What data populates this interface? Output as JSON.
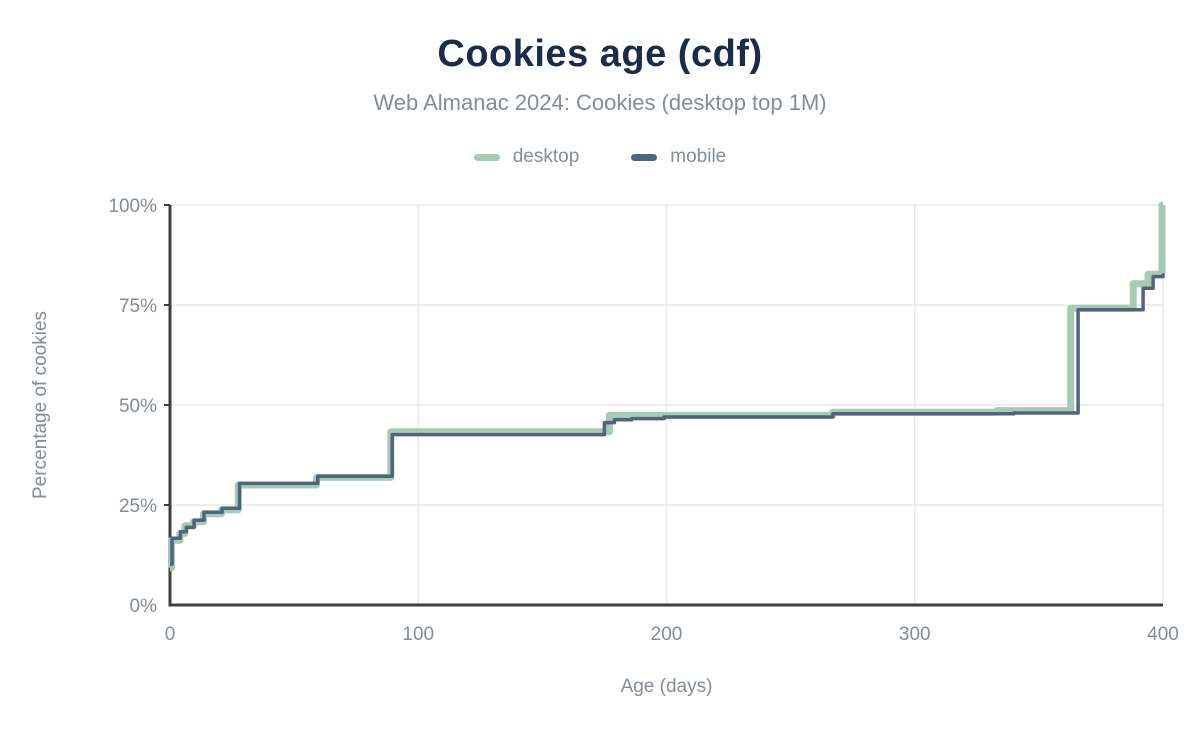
{
  "chart_data": {
    "type": "line",
    "subtype": "step-cdf",
    "title": "Cookies age (cdf)",
    "subtitle": "Web Almanac 2024: Cookies (desktop top 1M)",
    "xlabel": "Age (days)",
    "ylabel": "Percentage of cookies",
    "xlim": [
      0,
      400
    ],
    "ylim": [
      0,
      100
    ],
    "x_tick_values": [
      0,
      100,
      200,
      300,
      400
    ],
    "x_tick_labels": [
      "0",
      "100",
      "200",
      "300",
      "400"
    ],
    "y_tick_values": [
      0,
      25,
      50,
      75,
      100
    ],
    "y_tick_labels": [
      "0%",
      "25%",
      "50%",
      "75%",
      "100%"
    ],
    "grid": true,
    "legend_position": "top",
    "series": [
      {
        "name": "desktop",
        "color": "#a7cab4",
        "line_width": 7,
        "points": [
          [
            0,
            9.3
          ],
          [
            0.6,
            16.2
          ],
          [
            4,
            17.9
          ],
          [
            6,
            19.8
          ],
          [
            9.5,
            20.8
          ],
          [
            13.5,
            22.8
          ],
          [
            20.8,
            23.8
          ],
          [
            27.5,
            30.0
          ],
          [
            59,
            31.9
          ],
          [
            89,
            43.3
          ],
          [
            177,
            47.4
          ],
          [
            267,
            48.2
          ],
          [
            333,
            48.6
          ],
          [
            362.8,
            74.2
          ],
          [
            388,
            80.3
          ],
          [
            394,
            82.7
          ],
          [
            399.2,
            83.2
          ],
          [
            399.6,
            100
          ],
          [
            400,
            100
          ]
        ]
      },
      {
        "name": "mobile",
        "color": "#51647e",
        "line_width": 3.5,
        "points": [
          [
            0,
            10.2
          ],
          [
            0.8,
            16.7
          ],
          [
            4.2,
            18.3
          ],
          [
            6.6,
            19.4
          ],
          [
            9.7,
            21.2
          ],
          [
            13.7,
            23.2
          ],
          [
            21,
            24.2
          ],
          [
            28,
            30.4
          ],
          [
            59.5,
            32.2
          ],
          [
            89.5,
            42.6
          ],
          [
            175,
            45.6
          ],
          [
            179,
            46.3
          ],
          [
            186,
            46.6
          ],
          [
            199,
            47.0
          ],
          [
            267,
            47.8
          ],
          [
            340,
            48.0
          ],
          [
            365.8,
            73.8
          ],
          [
            392,
            79.2
          ],
          [
            396,
            82.1
          ],
          [
            400,
            82.9
          ]
        ]
      }
    ]
  },
  "colors": {
    "title_text": "#1b2b4a",
    "muted_text": "#848c94",
    "axis_line": "#3c3f43",
    "grid_line": "#e8eaec",
    "background": "#ffffff"
  }
}
